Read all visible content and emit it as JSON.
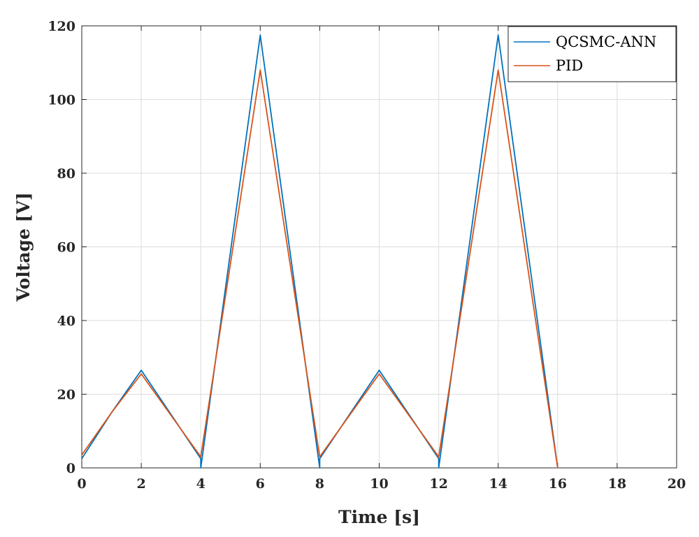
{
  "chart_data": {
    "type": "line",
    "xlabel": "Time [s]",
    "ylabel": "Voltage [V]",
    "xlim": [
      0,
      20
    ],
    "ylim": [
      0,
      120
    ],
    "x_ticks": [
      0,
      2,
      4,
      6,
      8,
      10,
      12,
      14,
      16,
      18,
      20
    ],
    "y_ticks": [
      0,
      20,
      40,
      60,
      80,
      100,
      120
    ],
    "grid": true,
    "legend_position": "top-right",
    "series": [
      {
        "name": "QCSMC-ANN",
        "color": "#0072BD",
        "x": [
          0,
          1,
          2,
          4,
          4.001,
          6,
          8,
          8.001,
          10,
          12,
          12.001,
          14,
          16
        ],
        "y": [
          2.5,
          15,
          26.5,
          2.5,
          0,
          117.5,
          0,
          2.5,
          26.5,
          2.5,
          0,
          117.5,
          0
        ]
      },
      {
        "name": "PID",
        "color": "#D95319",
        "x": [
          0,
          1,
          2,
          4,
          6,
          8,
          10,
          12,
          14,
          16
        ],
        "y": [
          3.5,
          15,
          25.5,
          3,
          108,
          3,
          25.5,
          3,
          108,
          0
        ]
      }
    ]
  }
}
